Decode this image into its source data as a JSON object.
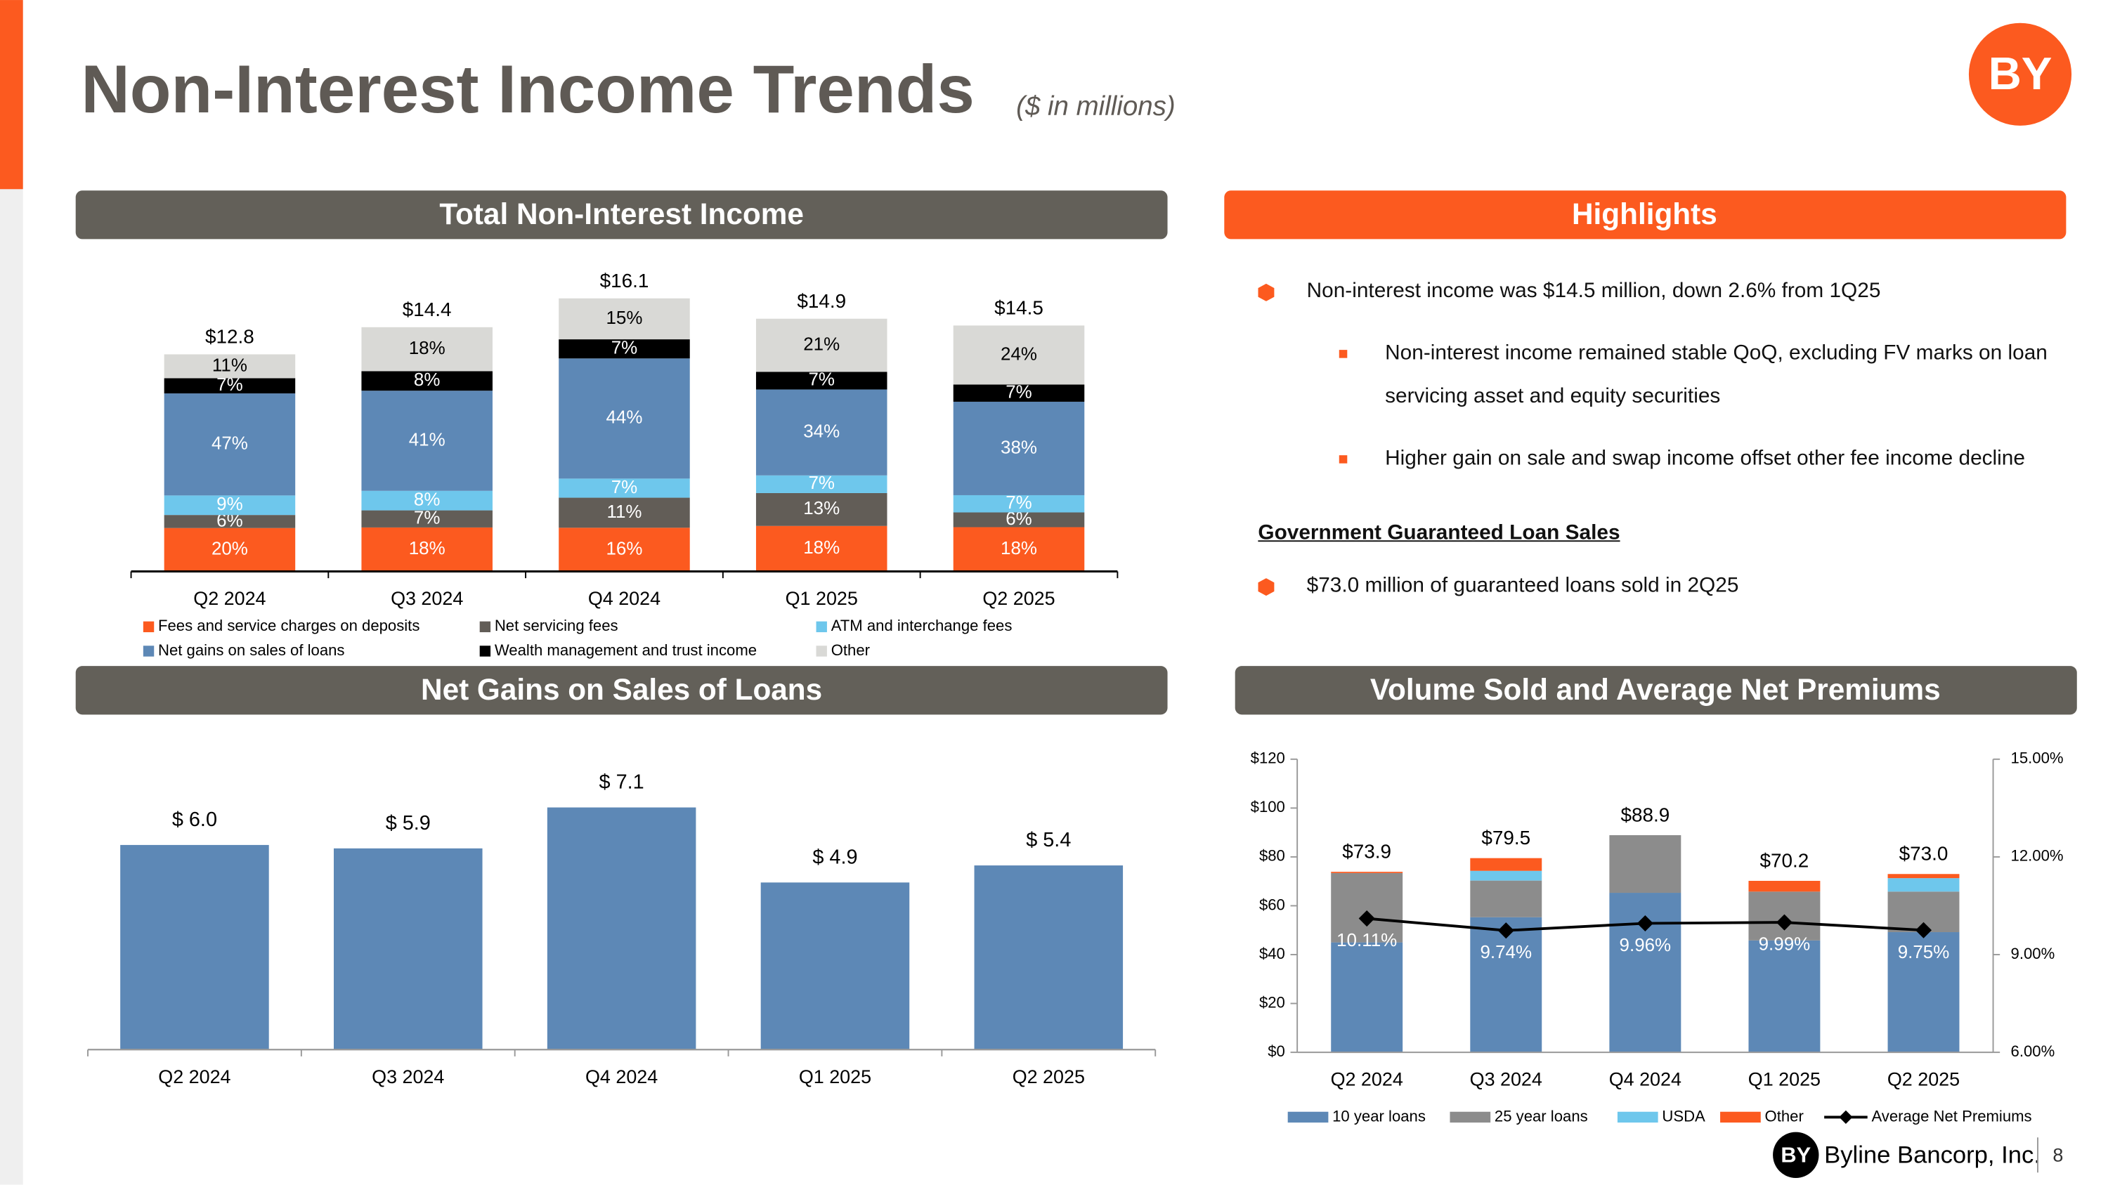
{
  "header": {
    "title": "Non-Interest Income Trends",
    "subtitle": "($ in millions)"
  },
  "highlights": {
    "title": "Highlights",
    "bullets": [
      {
        "text": "Non-interest income was $14.5 million, down 2.6% from 1Q25",
        "sub": [
          "Non-interest income remained stable QoQ, excluding FV marks on loan servicing asset and equity securities",
          "Higher gain on sale and swap income offset other fee income decline"
        ]
      }
    ],
    "heading": "Government Guaranteed Loan Sales",
    "loan_bullets": [
      "$73.0 million of guaranteed loans sold in 2Q25"
    ]
  },
  "footer": {
    "logo": "BY",
    "company": "Byline Bancorp, Inc.",
    "page": "8"
  },
  "chart_data": [
    {
      "type": "stacked_percent_bar",
      "title": "Total Non-Interest Income",
      "categories": [
        "Q2 2024",
        "Q3 2024",
        "Q4 2024",
        "Q1 2025",
        "Q2 2025"
      ],
      "totals": [
        12.8,
        14.4,
        16.1,
        14.9,
        14.5
      ],
      "totals_labels": [
        "$12.8",
        "$14.4",
        "$16.1",
        "$14.9",
        "$14.5"
      ],
      "ylim": [
        0,
        18
      ],
      "series": [
        {
          "name": "Fees and service charges on deposits",
          "color": "#fc5a1f",
          "label_color": "#ffffff",
          "values": [
            20,
            18,
            16,
            18,
            18
          ],
          "value_labels": [
            "20%",
            "18%",
            "16%",
            "18%",
            "18%"
          ]
        },
        {
          "name": "Net servicing fees",
          "color": "#625d57",
          "label_color": "#ffffff",
          "values": [
            6,
            7,
            11,
            13,
            6
          ],
          "value_labels": [
            "6%",
            "7%",
            "11%",
            "13%",
            "6%"
          ]
        },
        {
          "name": "ATM and interchange fees",
          "color": "#6ec7ec",
          "label_color": "#ffffff",
          "values": [
            9,
            8,
            7,
            7,
            7
          ],
          "value_labels": [
            "9%",
            "8%",
            "7%",
            "7%",
            "7%"
          ]
        },
        {
          "name": "Net gains on sales of loans",
          "color": "#5d88b6",
          "label_color": "#ffffff",
          "values": [
            47,
            41,
            44,
            34,
            38
          ],
          "value_labels": [
            "47%",
            "41%",
            "44%",
            "34%",
            "38%"
          ]
        },
        {
          "name": "Wealth management and trust income",
          "color": "#000000",
          "label_color": "#ffffff",
          "values": [
            7,
            8,
            7,
            7,
            7
          ],
          "value_labels": [
            "7%",
            "8%",
            "7%",
            "7%",
            "7%"
          ]
        },
        {
          "name": "Other",
          "color": "#d9d9d6",
          "label_color": "#000000",
          "values": [
            11,
            18,
            15,
            21,
            24
          ],
          "value_labels": [
            "11%",
            "18%",
            "15%",
            "21%",
            "24%"
          ]
        }
      ]
    },
    {
      "type": "bar",
      "title": "Net Gains on Sales of Loans",
      "categories": [
        "Q2 2024",
        "Q3 2024",
        "Q4 2024",
        "Q1 2025",
        "Q2 2025"
      ],
      "values": [
        6.0,
        5.9,
        7.1,
        4.9,
        5.4
      ],
      "value_labels": [
        "$ 6.0",
        "$ 5.9",
        "$ 7.1",
        "$ 4.9",
        "$ 5.4"
      ],
      "color": "#5d88b6",
      "ylim": [
        0,
        8
      ]
    },
    {
      "type": "stacked_bar_line",
      "title": "Volume Sold and Average Net Premiums",
      "categories": [
        "Q2 2024",
        "Q3 2024",
        "Q4 2024",
        "Q1 2025",
        "Q2 2025"
      ],
      "ylim": [
        0,
        120
      ],
      "yticks": [
        {
          "value": 0,
          "label": "$0"
        },
        {
          "value": 20,
          "label": "$20"
        },
        {
          "value": 40,
          "label": "$40"
        },
        {
          "value": 60,
          "label": "$60"
        },
        {
          "value": 80,
          "label": "$80"
        },
        {
          "value": 100,
          "label": "$100"
        },
        {
          "value": 120,
          "label": "$120"
        }
      ],
      "y2lim": [
        6,
        15
      ],
      "y2ticks": [
        {
          "value": 6,
          "label": "6.00%"
        },
        {
          "value": 9,
          "label": "9.00%"
        },
        {
          "value": 12,
          "label": "12.00%"
        },
        {
          "value": 15,
          "label": "15.00%"
        }
      ],
      "totals": [
        73.9,
        79.5,
        88.9,
        70.2,
        73.0
      ],
      "totals_labels": [
        "$73.9",
        "$79.5",
        "$88.9",
        "$70.2",
        "$73.0"
      ],
      "series": [
        {
          "name": "10 year loans",
          "color": "#5d88b6",
          "values": [
            45.0,
            55.3,
            65.3,
            45.8,
            49.2
          ]
        },
        {
          "name": "25 year loans",
          "color": "#8c8c8c",
          "values": [
            28.4,
            15.0,
            23.6,
            20.0,
            16.6
          ]
        },
        {
          "name": "USDA",
          "color": "#6ec7ec",
          "values": [
            0,
            4.0,
            0,
            0,
            5.5
          ]
        },
        {
          "name": "Other",
          "color": "#fc5a1f",
          "values": [
            0.5,
            5.2,
            0,
            4.4,
            1.7
          ]
        },
        {
          "name": "Average Net Premiums",
          "type": "line",
          "axis": "y2",
          "color": "#000000",
          "values": [
            10.11,
            9.74,
            9.96,
            9.99,
            9.75
          ],
          "value_labels": [
            "10.11%",
            "9.74%",
            "9.96%",
            "9.99%",
            "9.75%"
          ]
        }
      ]
    }
  ]
}
